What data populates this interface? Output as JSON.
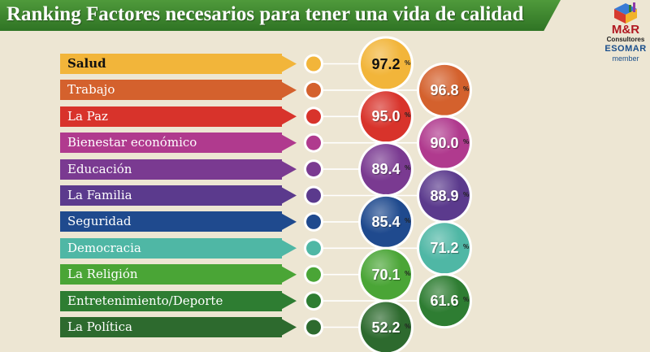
{
  "header": {
    "title": "Ranking Factores necesarios para tener una vida de calidad"
  },
  "logo": {
    "name": "M&R",
    "subtitle": "Consultores",
    "esomar": "ESOMAR",
    "member": "member"
  },
  "chart_data": {
    "type": "bar",
    "title": "Ranking Factores necesarios para tener una vida de calidad",
    "unit": "%",
    "categories": [
      "Salud",
      "Trabajo",
      "La Paz",
      "Bienestar económico",
      "Educación",
      "La Familia",
      "Seguridad",
      "Democracia",
      "La Religión",
      "Entretenimiento/Deporte",
      "La Política"
    ],
    "values": [
      97.2,
      96.8,
      95.0,
      90.0,
      89.4,
      88.9,
      85.4,
      71.2,
      70.1,
      61.6,
      52.2
    ],
    "labels": [
      "97.2",
      "96.8",
      "95.0",
      "90.0",
      "89.4",
      "88.9",
      "85.4",
      "71.2",
      "70.1",
      "61.6",
      "52.2"
    ],
    "colors": [
      "#f2b53a",
      "#d4612d",
      "#d8332b",
      "#b03a8e",
      "#7a3a91",
      "#5b3a8d",
      "#1f4a8e",
      "#4fb7a5",
      "#4aa536",
      "#2e7d32",
      "#2d6a2e"
    ]
  }
}
